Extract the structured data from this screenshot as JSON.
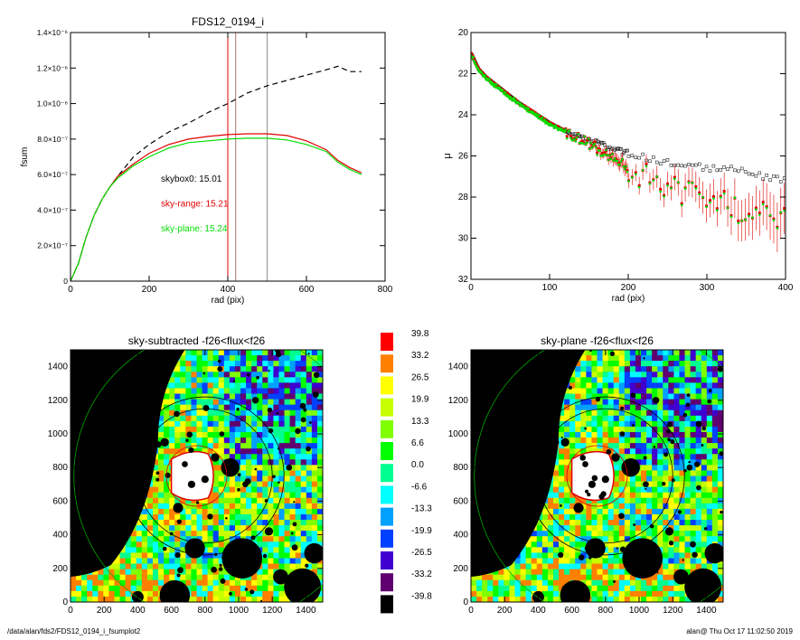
{
  "footer": {
    "path": "/data/alan/fds2/FDS12_0194_i_fsumplot2",
    "stamp": "alan@  Thu Oct 17 11:02:50 2019"
  },
  "chart_data": [
    {
      "type": "line",
      "title": "FDS12_0194_i",
      "xlabel": "rad (pix)",
      "ylabel": "fsum",
      "xlim": [
        0,
        800
      ],
      "ylim": [
        0,
        1.4e-06
      ],
      "xticks": [
        0,
        200,
        400,
        600,
        800
      ],
      "yticks": [
        0,
        2e-07,
        4e-07,
        6e-07,
        8e-07,
        1e-06,
        1.2e-06,
        1.4e-06
      ],
      "ytick_labels": [
        "0",
        "2.0×10⁻⁷",
        "4.0×10⁻⁷",
        "6.0×10⁻⁷",
        "8.0×10⁻⁷",
        "1.0×10⁻⁶",
        "1.2×10⁻⁶",
        "1.4×10⁻⁶"
      ],
      "vlines": [
        {
          "x": 400,
          "color": "#e00000"
        },
        {
          "x": 420,
          "color": "#b07070"
        },
        {
          "x": 500,
          "color": "#909090"
        }
      ],
      "annotations": [
        {
          "text": "skybox0: 15.01",
          "x": 230,
          "y": 5.6e-07,
          "color": "#000000"
        },
        {
          "text": "sky-range: 15.21",
          "x": 230,
          "y": 4.2e-07,
          "color": "#e00000"
        },
        {
          "text": "sky-plane: 15.24",
          "x": 230,
          "y": 2.8e-07,
          "color": "#00dd00"
        }
      ],
      "series": [
        {
          "color": "#000000",
          "dashed": true,
          "x": [
            0,
            20,
            40,
            60,
            80,
            100,
            120,
            160,
            200,
            250,
            300,
            350,
            400,
            450,
            500,
            550,
            600,
            650,
            680,
            710,
            740
          ],
          "y": [
            0,
            1e-07,
            2.5e-07,
            3.7e-07,
            4.6e-07,
            5.3e-07,
            5.9e-07,
            7e-07,
            7.7e-07,
            8.4e-07,
            8.9e-07,
            9.5e-07,
            1e-06,
            1.06e-06,
            1.1e-06,
            1.13e-06,
            1.16e-06,
            1.19e-06,
            1.21e-06,
            1.18e-06,
            1.18e-06
          ]
        },
        {
          "color": "#e00000",
          "dashed": false,
          "x": [
            0,
            20,
            40,
            60,
            80,
            100,
            120,
            160,
            200,
            250,
            300,
            350,
            400,
            450,
            500,
            550,
            600,
            650,
            680,
            710,
            740
          ],
          "y": [
            0,
            1e-07,
            2.5e-07,
            3.7e-07,
            4.6e-07,
            5.3e-07,
            5.9e-07,
            6.6e-07,
            7.2e-07,
            7.7e-07,
            8e-07,
            8.15e-07,
            8.25e-07,
            8.3e-07,
            8.3e-07,
            8.2e-07,
            7.9e-07,
            7.4e-07,
            6.8e-07,
            6.4e-07,
            6.1e-07
          ]
        },
        {
          "color": "#00dd00",
          "dashed": false,
          "x": [
            0,
            20,
            40,
            60,
            80,
            100,
            120,
            160,
            200,
            250,
            300,
            350,
            400,
            450,
            500,
            550,
            600,
            650,
            680,
            710,
            740
          ],
          "y": [
            0,
            1e-07,
            2.5e-07,
            3.7e-07,
            4.6e-07,
            5.3e-07,
            5.8e-07,
            6.5e-07,
            7e-07,
            7.5e-07,
            7.8e-07,
            7.9e-07,
            8e-07,
            8.05e-07,
            8.05e-07,
            7.95e-07,
            7.7e-07,
            7.3e-07,
            6.7e-07,
            6.3e-07,
            6e-07
          ]
        }
      ]
    },
    {
      "type": "scatter",
      "title": "",
      "xlabel": "rad (pix)",
      "ylabel": "μ",
      "xlim": [
        0,
        400
      ],
      "ylim": [
        32,
        20
      ],
      "xticks": [
        0,
        100,
        200,
        300,
        400
      ],
      "yticks": [
        20,
        22,
        24,
        26,
        28,
        30,
        32
      ],
      "profile_knots": {
        "x": [
          0,
          5,
          10,
          20,
          40,
          60,
          80,
          100,
          120,
          140,
          160,
          180,
          200,
          240,
          280,
          320,
          360,
          400
        ],
        "y": [
          21.0,
          21.4,
          21.8,
          22.2,
          22.8,
          23.4,
          23.9,
          24.4,
          24.8,
          25.2,
          25.6,
          26.1,
          26.5,
          27.2,
          27.8,
          28.3,
          28.7,
          29.0
        ]
      },
      "black_offset": {
        "start": 130,
        "end": 400,
        "max": 1.8
      },
      "series": [
        {
          "marker": "open-square",
          "color": "#000000"
        },
        {
          "marker": "square",
          "color": "#e00000"
        },
        {
          "marker": "dot",
          "color": "#00dd00"
        }
      ]
    },
    {
      "type": "heatmap",
      "title": "sky-subtracted -f26<flux<f26",
      "xlim": [
        0,
        1500
      ],
      "ylim": [
        0,
        1500
      ],
      "xticks": [
        0,
        200,
        400,
        600,
        800,
        1000,
        1200,
        1400
      ],
      "yticks": [
        0,
        200,
        400,
        600,
        800,
        1000,
        1200,
        1400
      ],
      "circles": [
        {
          "cx": 750,
          "cy": 750,
          "r": 180,
          "color": "#d00000"
        },
        {
          "cx": 800,
          "cy": 750,
          "r": 400,
          "color": "#000000"
        },
        {
          "cx": 800,
          "cy": 750,
          "r": 470,
          "color": "#000000"
        },
        {
          "cx": 900,
          "cy": 750,
          "r": 880,
          "color": "#00aa00"
        }
      ]
    },
    {
      "type": "heatmap",
      "title": "sky-plane -f26<flux<f26",
      "xlim": [
        0,
        1500
      ],
      "ylim": [
        0,
        1500
      ],
      "xticks": [
        0,
        200,
        400,
        600,
        800,
        1000,
        1200,
        1400
      ],
      "yticks": [
        0,
        200,
        400,
        600,
        800,
        1000,
        1200,
        1400
      ],
      "circles": [
        {
          "cx": 750,
          "cy": 750,
          "r": 180,
          "color": "#d00000"
        },
        {
          "cx": 800,
          "cy": 750,
          "r": 400,
          "color": "#000000"
        },
        {
          "cx": 800,
          "cy": 750,
          "r": 470,
          "color": "#000000"
        },
        {
          "cx": 900,
          "cy": 750,
          "r": 880,
          "color": "#00aa00"
        }
      ]
    },
    {
      "type": "colorbar",
      "labels": [
        "39.8",
        "33.2",
        "26.5",
        "19.9",
        "13.3",
        "6.6",
        "0.0",
        "-6.6",
        "-13.3",
        "-19.9",
        "-26.5",
        "-33.2",
        "-39.8"
      ],
      "colors": [
        "#ff0000",
        "#ff8000",
        "#ffff00",
        "#c8ff00",
        "#80ff00",
        "#00ff00",
        "#00ff90",
        "#00ffff",
        "#00a0ff",
        "#0040ff",
        "#4000d0",
        "#600070",
        "#000000"
      ]
    }
  ]
}
